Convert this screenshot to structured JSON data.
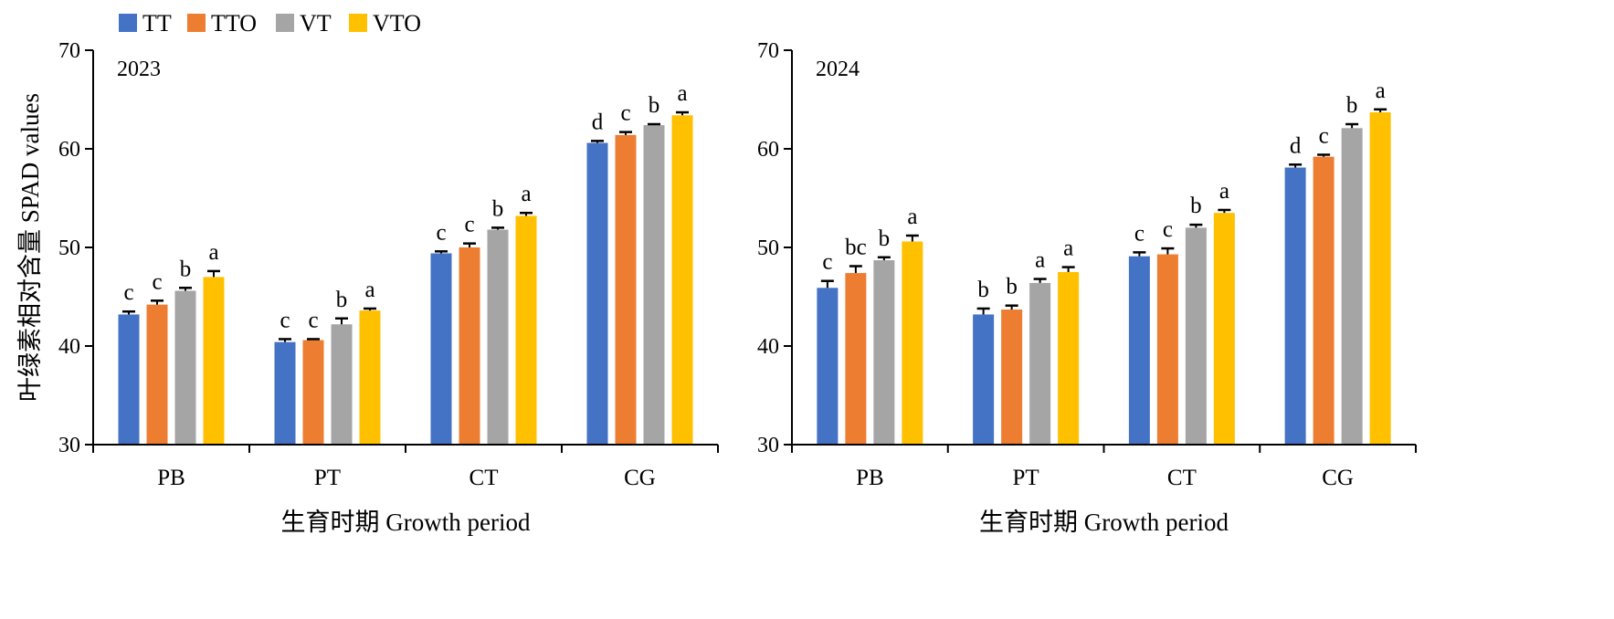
{
  "chart_data": [
    {
      "type": "bar",
      "panel_label": "2023",
      "ylabel": "叶绿素相对含量 SPAD values",
      "xlabel": "生育时期 Growth period",
      "ylim": [
        30,
        70
      ],
      "yticks": [
        "30",
        "40",
        "50",
        "60",
        "70"
      ],
      "categories": [
        "PB",
        "PT",
        "CT",
        "CG"
      ],
      "series": [
        {
          "name": "TT",
          "color": "#4472C4",
          "values": [
            43.2,
            40.4,
            49.4,
            60.6
          ],
          "errors": [
            0.3,
            0.3,
            0.2,
            0.2
          ],
          "letters": [
            "c",
            "c",
            "c",
            "d"
          ]
        },
        {
          "name": "TTO",
          "color": "#ED7D31",
          "values": [
            44.2,
            40.6,
            50.0,
            61.4
          ],
          "errors": [
            0.4,
            0.1,
            0.4,
            0.3
          ],
          "letters": [
            "c",
            "c",
            "c",
            "c"
          ]
        },
        {
          "name": "VT",
          "color": "#A5A5A5",
          "values": [
            45.6,
            42.2,
            51.8,
            62.4
          ],
          "errors": [
            0.3,
            0.6,
            0.2,
            0.1
          ],
          "letters": [
            "b",
            "b",
            "b",
            "b"
          ]
        },
        {
          "name": "VTO",
          "color": "#FFC000",
          "values": [
            47.0,
            43.6,
            53.2,
            63.4
          ],
          "errors": [
            0.6,
            0.2,
            0.3,
            0.3
          ],
          "letters": [
            "a",
            "a",
            "a",
            "a"
          ]
        }
      ]
    },
    {
      "type": "bar",
      "panel_label": "2024",
      "ylabel": "",
      "xlabel": "生育时期 Growth period",
      "ylim": [
        30,
        70
      ],
      "yticks": [
        "30",
        "40",
        "50",
        "60",
        "70"
      ],
      "categories": [
        "PB",
        "PT",
        "CT",
        "CG"
      ],
      "series": [
        {
          "name": "TT",
          "color": "#4472C4",
          "values": [
            45.9,
            43.2,
            49.1,
            58.1
          ],
          "errors": [
            0.7,
            0.6,
            0.4,
            0.3
          ],
          "letters": [
            "c",
            "b",
            "c",
            "d"
          ]
        },
        {
          "name": "TTO",
          "color": "#ED7D31",
          "values": [
            47.4,
            43.7,
            49.3,
            59.2
          ],
          "errors": [
            0.7,
            0.4,
            0.6,
            0.2
          ],
          "letters": [
            "bc",
            "b",
            "c",
            "c"
          ]
        },
        {
          "name": "VT",
          "color": "#A5A5A5",
          "values": [
            48.7,
            46.4,
            52.0,
            62.1
          ],
          "errors": [
            0.3,
            0.4,
            0.3,
            0.4
          ],
          "letters": [
            "b",
            "a",
            "b",
            "b"
          ]
        },
        {
          "name": "VTO",
          "color": "#FFC000",
          "values": [
            50.6,
            47.5,
            53.5,
            63.7
          ],
          "errors": [
            0.6,
            0.5,
            0.3,
            0.3
          ],
          "letters": [
            "a",
            "a",
            "a",
            "a"
          ]
        }
      ]
    }
  ],
  "legend": [
    {
      "label": "TT",
      "color": "#4472C4"
    },
    {
      "label": "TTO",
      "color": "#ED7D31"
    },
    {
      "label": "VT",
      "color": "#A5A5A5"
    },
    {
      "label": "VTO",
      "color": "#FFC000"
    }
  ]
}
